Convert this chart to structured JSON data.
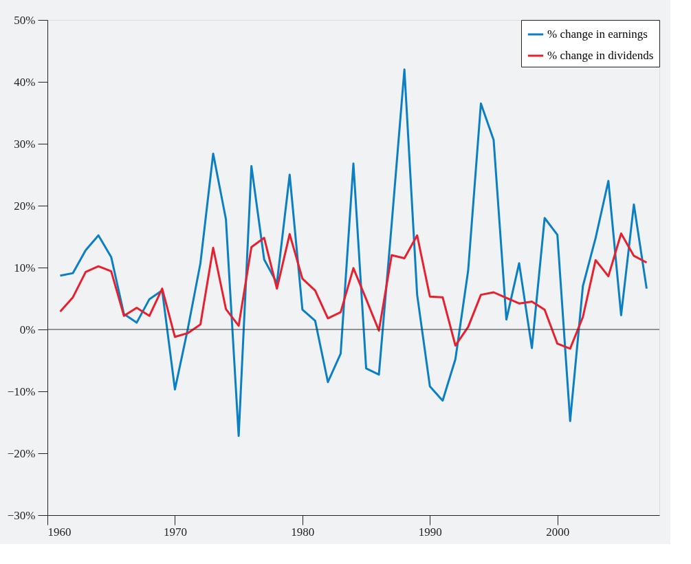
{
  "chart_data": {
    "type": "line",
    "x": [
      1961,
      1962,
      1963,
      1964,
      1965,
      1966,
      1967,
      1968,
      1969,
      1970,
      1971,
      1972,
      1973,
      1974,
      1975,
      1976,
      1977,
      1978,
      1979,
      1980,
      1981,
      1982,
      1983,
      1984,
      1985,
      1986,
      1987,
      1988,
      1989,
      1990,
      1991,
      1992,
      1993,
      1994,
      1995,
      1996,
      1997,
      1998,
      1999,
      2000,
      2001,
      2002,
      2003,
      2004,
      2005,
      2006,
      2007
    ],
    "series": [
      {
        "name": "% change in earnings",
        "color": "#0a7fc4",
        "values": [
          8.7,
          9.1,
          12.8,
          15.2,
          11.7,
          2.5,
          1.1,
          4.9,
          6.3,
          -9.7,
          0.0,
          10.7,
          28.4,
          17.8,
          -17.2,
          26.4,
          11.3,
          7.5,
          25.0,
          3.2,
          1.4,
          -8.5,
          -3.9,
          26.8,
          -6.3,
          -7.3,
          17,
          42.0,
          5.6,
          -9.2,
          -11.5,
          -4.8,
          9.5,
          36.5,
          30.6,
          1.6,
          10.7,
          -3.0,
          18.0,
          15.3,
          -14.8,
          7.0,
          14.8,
          24.0,
          2.3,
          20.2,
          6.6
        ]
      },
      {
        "name": "% change in dividends",
        "color": "#e8202e",
        "values": [
          2.9,
          5.2,
          9.3,
          10.2,
          9.4,
          2.2,
          3.5,
          2.2,
          6.6,
          -1.2,
          -0.6,
          0.8,
          13.2,
          3.3,
          0.6,
          13.3,
          14.8,
          6.6,
          15.4,
          8.2,
          6.3,
          1.8,
          2.8,
          9.9,
          4.9,
          -0.2,
          12.0,
          11.5,
          15.2,
          5.3,
          5.2,
          -2.6,
          0.4,
          5.6,
          6.0,
          5.1,
          4.2,
          4.5,
          3.2,
          -2.3,
          -3.1,
          2.0,
          11.2,
          8.6,
          15.5,
          11.9,
          10.8
        ]
      }
    ],
    "xlim": [
      1960,
      2008
    ],
    "xticks": [
      1960,
      1970,
      1980,
      1990,
      2000
    ],
    "ylim": [
      -30,
      50
    ],
    "yticks": [
      {
        "value": -30,
        "label": "−30%"
      },
      {
        "value": -20,
        "label": "−20%"
      },
      {
        "value": -10,
        "label": "−10%"
      },
      {
        "value": 0,
        "label": "0%"
      },
      {
        "value": 10,
        "label": "10%"
      },
      {
        "value": 20,
        "label": "20%"
      },
      {
        "value": 30,
        "label": "30%"
      },
      {
        "value": 40,
        "label": "40%"
      },
      {
        "value": 50,
        "label": "50%"
      }
    ],
    "ref_lines": [
      {
        "axis": "y",
        "value": 0,
        "color": "#333333"
      }
    ],
    "legend": "top right",
    "grid": false,
    "marker": "none",
    "line_style": "solid"
  }
}
